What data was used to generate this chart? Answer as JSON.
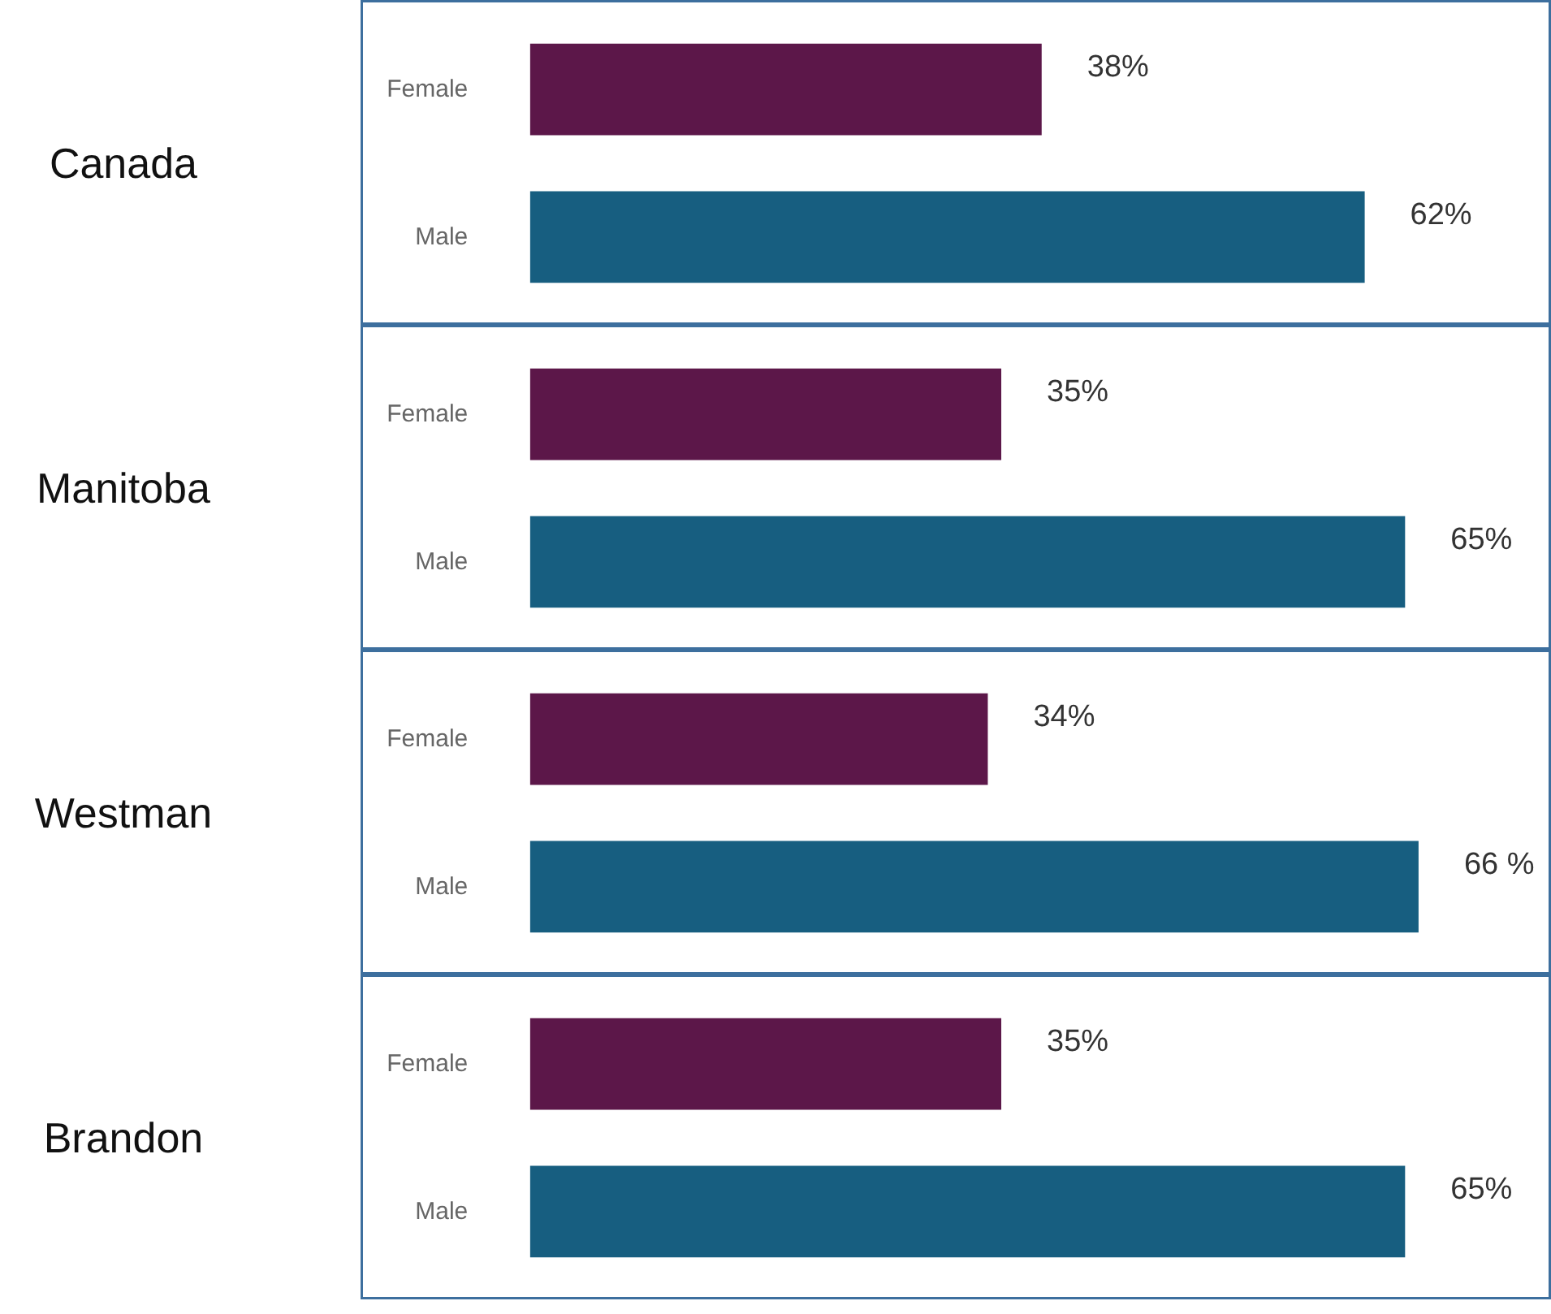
{
  "chart_data": [
    {
      "type": "bar",
      "orientation": "horizontal",
      "title": "Canada",
      "categories": [
        "Female",
        "Male"
      ],
      "values": [
        38,
        62
      ],
      "colors": [
        "#5c1749",
        "#175e80"
      ],
      "value_labels": [
        "38%",
        "62%"
      ]
    },
    {
      "type": "bar",
      "orientation": "horizontal",
      "title": "Manitoba",
      "categories": [
        "Female",
        "Male"
      ],
      "values": [
        35,
        65
      ],
      "colors": [
        "#5c1749",
        "#175e80"
      ],
      "value_labels": [
        "35%",
        "65%"
      ]
    },
    {
      "type": "bar",
      "orientation": "horizontal",
      "title": "Westman",
      "categories": [
        "Female",
        "Male"
      ],
      "values": [
        34,
        66
      ],
      "colors": [
        "#5c1749",
        "#175e80"
      ],
      "value_labels": [
        "34%",
        "66 %"
      ]
    },
    {
      "type": "bar",
      "orientation": "horizontal",
      "title": "Brandon",
      "categories": [
        "Female",
        "Male"
      ],
      "values": [
        35,
        65
      ],
      "colors": [
        "#5c1749",
        "#175e80"
      ],
      "value_labels": [
        "35%",
        "65%"
      ]
    }
  ]
}
